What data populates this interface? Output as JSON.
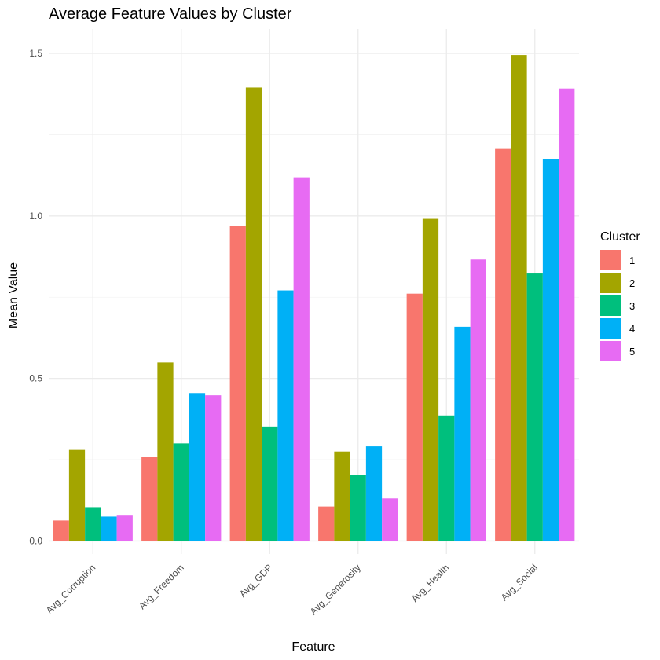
{
  "chart_data": {
    "type": "bar",
    "title": "Average Feature Values by Cluster",
    "xlabel": "Feature",
    "ylabel": "Mean Value",
    "categories": [
      "Avg_Corruption",
      "Avg_Freedom",
      "Avg_GDP",
      "Avg_Generosity",
      "Avg_Health",
      "Avg_Social"
    ],
    "ylim": [
      -0.04,
      1.575
    ],
    "yticks": [
      0.0,
      0.5,
      1.0,
      1.5
    ],
    "ytick_labels": [
      "0.0",
      "0.5",
      "1.0",
      "1.5"
    ],
    "grid": true,
    "legend": {
      "title": "Cluster",
      "position": "right"
    },
    "series": [
      {
        "name": "1",
        "color": "#F8766D",
        "values": [
          0.063,
          0.258,
          0.97,
          0.106,
          0.761,
          1.206
        ]
      },
      {
        "name": "2",
        "color": "#A3A500",
        "values": [
          0.28,
          0.549,
          1.395,
          0.275,
          0.991,
          1.495
        ]
      },
      {
        "name": "3",
        "color": "#00BF7D",
        "values": [
          0.104,
          0.3,
          0.352,
          0.204,
          0.386,
          0.823
        ]
      },
      {
        "name": "4",
        "color": "#00B0F6",
        "values": [
          0.075,
          0.455,
          0.771,
          0.291,
          0.659,
          1.174
        ]
      },
      {
        "name": "5",
        "color": "#E76BF3",
        "values": [
          0.078,
          0.448,
          1.119,
          0.131,
          0.866,
          1.392
        ]
      }
    ]
  }
}
